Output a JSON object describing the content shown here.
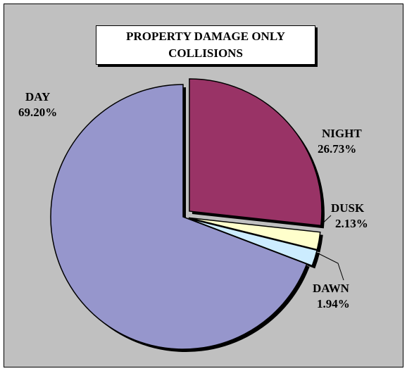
{
  "chart_data": {
    "type": "pie",
    "title_lines": [
      "PROPERTY DAMAGE ONLY",
      "COLLISIONS"
    ],
    "slices": [
      {
        "label": "DAY",
        "value": 69.2,
        "display": "69.20%",
        "color": "#9696cc"
      },
      {
        "label": "NIGHT",
        "value": 26.73,
        "display": "26.73%",
        "color": "#993366"
      },
      {
        "label": "DUSK",
        "value": 2.13,
        "display": "2.13%",
        "color": "#ffffcc"
      },
      {
        "label": "DAWN",
        "value": 1.94,
        "display": "1.94%",
        "color": "#ccecff"
      }
    ]
  }
}
